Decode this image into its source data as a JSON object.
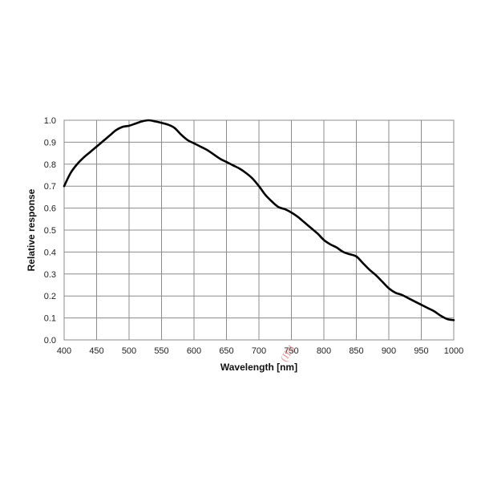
{
  "chart_data": {
    "type": "line",
    "title": "",
    "xlabel": "Wavelength [nm]",
    "ylabel": "Relative response",
    "xlim": [
      400,
      1000
    ],
    "ylim": [
      0.0,
      1.0
    ],
    "grid": true,
    "x_ticks": [
      "400",
      "450",
      "500",
      "550",
      "600",
      "650",
      "700",
      "750",
      "800",
      "850",
      "900",
      "950",
      "1000"
    ],
    "y_ticks": [
      "0.0",
      "0.1",
      "0.2",
      "0.3",
      "0.4",
      "0.5",
      "0.6",
      "0.7",
      "0.8",
      "0.9",
      "1.0"
    ],
    "series": [
      {
        "color": "#000000",
        "x": [
          400,
          410,
          420,
          430,
          440,
          450,
          460,
          470,
          480,
          490,
          500,
          510,
          520,
          530,
          540,
          550,
          560,
          570,
          580,
          590,
          600,
          610,
          620,
          630,
          640,
          650,
          660,
          670,
          680,
          690,
          700,
          710,
          720,
          730,
          740,
          750,
          760,
          770,
          780,
          790,
          800,
          810,
          820,
          830,
          840,
          850,
          860,
          870,
          880,
          890,
          900,
          910,
          920,
          930,
          940,
          950,
          960,
          970,
          980,
          990,
          1000
        ],
        "y": [
          0.7,
          0.76,
          0.8,
          0.83,
          0.855,
          0.88,
          0.905,
          0.93,
          0.955,
          0.97,
          0.975,
          0.985,
          0.995,
          1.0,
          0.995,
          0.988,
          0.98,
          0.965,
          0.935,
          0.91,
          0.895,
          0.88,
          0.865,
          0.845,
          0.825,
          0.81,
          0.795,
          0.78,
          0.76,
          0.735,
          0.7,
          0.66,
          0.63,
          0.605,
          0.595,
          0.58,
          0.56,
          0.535,
          0.51,
          0.485,
          0.455,
          0.435,
          0.42,
          0.4,
          0.39,
          0.38,
          0.35,
          0.32,
          0.295,
          0.265,
          0.235,
          0.215,
          0.205,
          0.19,
          0.175,
          0.16,
          0.145,
          0.13,
          0.11,
          0.095,
          0.09
        ]
      }
    ]
  },
  "watermark": "(IBI"
}
